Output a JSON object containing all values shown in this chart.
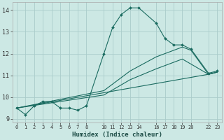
{
  "xlabel": "Humidex (Indice chaleur)",
  "bg_color": "#cce8e4",
  "grid_color": "#aaccca",
  "line_color": "#1a6b60",
  "xlim": [
    -0.5,
    23.5
  ],
  "ylim": [
    8.85,
    14.35
  ],
  "yticks": [
    9,
    10,
    11,
    12,
    13,
    14
  ],
  "xtick_positions": [
    0,
    1,
    2,
    3,
    4,
    5,
    6,
    7,
    8,
    10,
    11,
    12,
    13,
    14,
    16,
    17,
    18,
    19,
    20,
    22,
    23
  ],
  "xtick_labels": [
    "0",
    "1",
    "2",
    "3",
    "4",
    "5",
    "6",
    "7",
    "8",
    "10",
    "11",
    "12",
    "13",
    "14",
    "16",
    "17",
    "18",
    "19",
    "20",
    "22",
    "23"
  ],
  "lines": [
    {
      "x": [
        0,
        1,
        2,
        3,
        4,
        5,
        6,
        7,
        8,
        10,
        11,
        12,
        13,
        14,
        16,
        17,
        18,
        19,
        20,
        22,
        23
      ],
      "y": [
        9.5,
        9.2,
        9.6,
        9.8,
        9.8,
        9.5,
        9.5,
        9.4,
        9.6,
        12.0,
        13.2,
        13.8,
        14.1,
        14.1,
        13.4,
        12.7,
        12.4,
        12.4,
        12.2,
        11.1,
        11.2
      ],
      "marker": "D",
      "markersize": 2.0,
      "linewidth": 0.8,
      "zorder": 3
    },
    {
      "x": [
        0,
        22,
        23
      ],
      "y": [
        9.5,
        11.05,
        11.15
      ],
      "marker": null,
      "markersize": 0,
      "linewidth": 0.8,
      "zorder": 2
    },
    {
      "x": [
        0,
        10,
        13,
        16,
        19,
        22,
        23
      ],
      "y": [
        9.5,
        10.1,
        10.8,
        11.3,
        11.75,
        11.05,
        11.15
      ],
      "marker": null,
      "markersize": 0,
      "linewidth": 0.8,
      "zorder": 2
    },
    {
      "x": [
        0,
        10,
        13,
        16,
        19,
        20,
        22,
        23
      ],
      "y": [
        9.5,
        10.3,
        11.2,
        11.85,
        12.3,
        12.15,
        11.05,
        11.15
      ],
      "marker": null,
      "markersize": 0,
      "linewidth": 0.8,
      "zorder": 2
    }
  ],
  "figsize": [
    3.2,
    2.0
  ],
  "dpi": 100
}
